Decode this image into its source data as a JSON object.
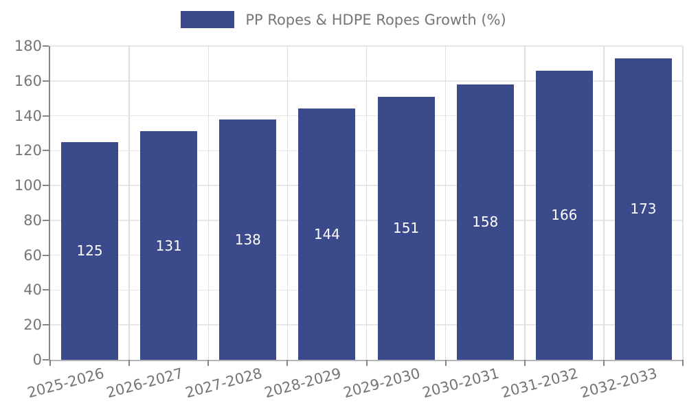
{
  "chart_data": {
    "type": "bar",
    "title": "",
    "legend": "PP Ropes & HDPE Ropes Growth (%)",
    "legend_position": "top-center",
    "categories": [
      "2025-2026",
      "2026-2027",
      "2027-2028",
      "2028-2029",
      "2029-2030",
      "2030-2031",
      "2031-2032",
      "2032-2033"
    ],
    "values": [
      125,
      131,
      138,
      144,
      151,
      158,
      166,
      173
    ],
    "xlabel": "",
    "ylabel": "",
    "ylim": [
      0,
      180
    ],
    "ytick_step": 20,
    "yticks": [
      0,
      20,
      40,
      60,
      80,
      100,
      120,
      140,
      160,
      180
    ],
    "grid": "on",
    "value_label_position": "inside-center",
    "colors": {
      "bar": "#3a4a8a",
      "value_label": "#ffffff",
      "axis_text": "#757575",
      "legend_text": "#767676",
      "axis_line": "#858585",
      "bottom_axis_line": "#b3b3b3",
      "gridline": "#e5e5e5",
      "background": "#ffffff"
    }
  }
}
